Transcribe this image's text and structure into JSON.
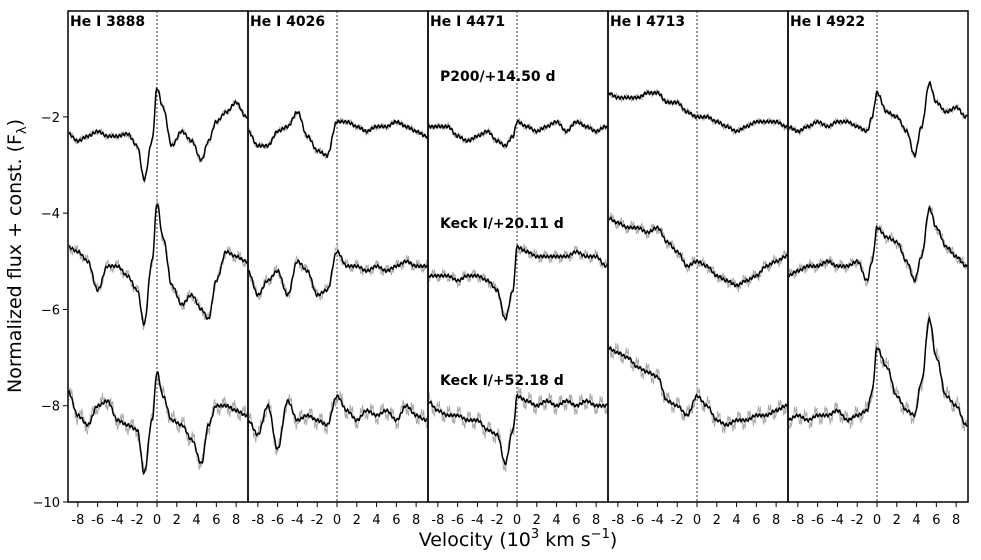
{
  "chart_data": {
    "type": "line",
    "ylabel": "Normalized flux + const. (F",
    "ylabel_sub": "λ",
    "ylabel_end": ")",
    "xlabel_main": "Velocity (10",
    "xlabel_sup1": "3",
    "xlabel_mid": " km s",
    "xlabel_sup2": "−1",
    "xlabel_end": ")",
    "xlim": [
      -9,
      9.2
    ],
    "ylim": [
      -10,
      0.2
    ],
    "xticks": [
      -8,
      -6,
      -4,
      -2,
      0,
      2,
      4,
      6,
      8
    ],
    "yticks": [
      -10,
      -8,
      -6,
      -4,
      -2
    ],
    "reference_line_x": 0,
    "colors": {
      "smoothed": "#000000",
      "raw": "#a8a8a8"
    },
    "epoch_labels": [
      "P200/+14.50 d",
      "Keck I/+20.11 d",
      "Keck I/+52.18 d"
    ],
    "panels": [
      {
        "title": "He I 3888",
        "series": [
          {
            "epoch": "P200/+14.50 d",
            "x": [
              -9,
              -8,
              -7,
              -6,
              -5,
              -4,
              -3,
              -2,
              -1.3,
              -0.5,
              0,
              0.6,
              1.5,
              2.5,
              3.5,
              4.5,
              5.2,
              6,
              7,
              8,
              9
            ],
            "y": [
              -2.35,
              -2.5,
              -2.4,
              -2.3,
              -2.4,
              -2.4,
              -2.35,
              -2.6,
              -3.3,
              -2.5,
              -1.4,
              -1.8,
              -2.6,
              -2.3,
              -2.5,
              -2.9,
              -2.5,
              -2.1,
              -1.9,
              -1.7,
              -2.0
            ]
          },
          {
            "epoch": "Keck I/+20.11 d",
            "x": [
              -9,
              -8,
              -7,
              -6,
              -5,
              -4,
              -3,
              -2,
              -1.3,
              -0.5,
              0,
              0.6,
              1.5,
              2.5,
              3.5,
              4.5,
              5.2,
              6,
              7,
              8,
              9
            ],
            "y": [
              -4.7,
              -4.8,
              -5.0,
              -5.6,
              -5.1,
              -5.1,
              -5.3,
              -5.6,
              -6.3,
              -5.0,
              -3.8,
              -4.5,
              -5.5,
              -5.9,
              -5.7,
              -6.0,
              -6.2,
              -5.4,
              -4.8,
              -4.9,
              -5.0
            ]
          },
          {
            "epoch": "Keck I/+52.18 d",
            "x": [
              -9,
              -8,
              -7,
              -6,
              -5,
              -4,
              -3,
              -2,
              -1.3,
              -0.5,
              0,
              0.6,
              1.5,
              2.5,
              3.5,
              4.5,
              5.2,
              6,
              7,
              8,
              9
            ],
            "y": [
              -7.7,
              -8.2,
              -8.4,
              -8.0,
              -7.9,
              -8.3,
              -8.4,
              -8.5,
              -9.4,
              -8.3,
              -7.3,
              -7.8,
              -8.3,
              -8.4,
              -8.7,
              -9.2,
              -8.4,
              -8.0,
              -8.0,
              -8.1,
              -8.2
            ]
          }
        ]
      },
      {
        "title": "He I 4026",
        "series": [
          {
            "epoch": "P200/+14.50 d",
            "x": [
              -9,
              -8,
              -7,
              -6,
              -5,
              -4,
              -3,
              -2,
              -1,
              0,
              1,
              2,
              3,
              4,
              5,
              6,
              7,
              8,
              9
            ],
            "y": [
              -2.3,
              -2.6,
              -2.6,
              -2.3,
              -2.2,
              -1.9,
              -2.4,
              -2.7,
              -2.8,
              -2.1,
              -2.1,
              -2.2,
              -2.3,
              -2.2,
              -2.2,
              -2.1,
              -2.2,
              -2.3,
              -2.4
            ]
          },
          {
            "epoch": "Keck I/+20.11 d",
            "x": [
              -9,
              -8,
              -7,
              -6,
              -5,
              -4,
              -3,
              -2,
              -1,
              0,
              1,
              2,
              3,
              4,
              5,
              6,
              7,
              8,
              9
            ],
            "y": [
              -5.2,
              -5.7,
              -5.4,
              -5.2,
              -5.7,
              -5.0,
              -5.2,
              -5.7,
              -5.6,
              -4.8,
              -5.1,
              -5.1,
              -5.2,
              -5.1,
              -5.2,
              -5.1,
              -5.0,
              -5.1,
              -5.1
            ]
          },
          {
            "epoch": "Keck I/+52.18 d",
            "x": [
              -9,
              -8,
              -7,
              -6,
              -5,
              -4,
              -3,
              -2,
              -1,
              0,
              1,
              2,
              3,
              4,
              5,
              6,
              7,
              8,
              9
            ],
            "y": [
              -8.3,
              -8.6,
              -8.0,
              -8.9,
              -7.9,
              -8.3,
              -8.2,
              -8.3,
              -8.4,
              -7.8,
              -8.1,
              -8.3,
              -8.1,
              -8.2,
              -8.1,
              -8.3,
              -8.0,
              -8.2,
              -8.3
            ]
          }
        ]
      },
      {
        "title": "He I 4471",
        "series": [
          {
            "epoch": "P200/+14.50 d",
            "x": [
              -9,
              -8,
              -7,
              -6,
              -5,
              -4,
              -3,
              -2,
              -1.2,
              -0.4,
              0,
              1,
              2,
              3,
              4,
              5,
              6,
              7,
              8,
              9
            ],
            "y": [
              -2.2,
              -2.2,
              -2.2,
              -2.4,
              -2.5,
              -2.4,
              -2.3,
              -2.5,
              -2.6,
              -2.4,
              -2.1,
              -2.2,
              -2.3,
              -2.2,
              -2.1,
              -2.3,
              -2.1,
              -2.2,
              -2.3,
              -2.2
            ]
          },
          {
            "epoch": "Keck I/+20.11 d",
            "x": [
              -9,
              -8,
              -7,
              -6,
              -5,
              -4,
              -3,
              -2,
              -1.2,
              -0.4,
              0,
              1,
              2,
              3,
              4,
              5,
              6,
              7,
              8,
              9
            ],
            "y": [
              -5.3,
              -5.3,
              -5.3,
              -5.4,
              -5.3,
              -5.3,
              -5.4,
              -5.6,
              -6.2,
              -5.6,
              -4.7,
              -4.8,
              -4.9,
              -4.9,
              -4.9,
              -4.9,
              -4.8,
              -4.9,
              -4.9,
              -5.1
            ]
          },
          {
            "epoch": "Keck I/+52.18 d",
            "x": [
              -9,
              -8,
              -7,
              -6,
              -5,
              -4,
              -3,
              -2,
              -1.2,
              -0.4,
              0,
              1,
              2,
              3,
              4,
              5,
              6,
              7,
              8,
              9
            ],
            "y": [
              -7.9,
              -8.1,
              -8.2,
              -8.2,
              -8.3,
              -8.3,
              -8.5,
              -8.6,
              -9.2,
              -8.5,
              -7.8,
              -7.9,
              -8.0,
              -7.9,
              -8.0,
              -7.9,
              -8.0,
              -7.9,
              -8.0,
              -8.0
            ]
          }
        ]
      },
      {
        "title": "He I 4713",
        "series": [
          {
            "epoch": "P200/+14.50 d",
            "x": [
              -9,
              -8,
              -7,
              -6,
              -5,
              -4,
              -3,
              -2,
              -1,
              0,
              1,
              2,
              3,
              4,
              5,
              6,
              7,
              8,
              9
            ],
            "y": [
              -1.5,
              -1.6,
              -1.6,
              -1.6,
              -1.5,
              -1.5,
              -1.7,
              -1.7,
              -1.9,
              -2.0,
              -2.0,
              -2.1,
              -2.2,
              -2.3,
              -2.2,
              -2.1,
              -2.1,
              -2.1,
              -2.2
            ]
          },
          {
            "epoch": "Keck I/+20.11 d",
            "x": [
              -9,
              -8,
              -7,
              -6,
              -5,
              -4,
              -3,
              -2,
              -1,
              0,
              1,
              2,
              3,
              4,
              5,
              6,
              7,
              8,
              9
            ],
            "y": [
              -4.1,
              -4.2,
              -4.3,
              -4.3,
              -4.4,
              -4.3,
              -4.6,
              -4.8,
              -5.1,
              -5.0,
              -5.1,
              -5.3,
              -5.4,
              -5.5,
              -5.4,
              -5.3,
              -5.1,
              -5.0,
              -4.9
            ]
          },
          {
            "epoch": "Keck I/+52.18 d",
            "x": [
              -9,
              -8,
              -7,
              -6,
              -5,
              -4,
              -3,
              -2,
              -1,
              0,
              1,
              2,
              3,
              4,
              5,
              6,
              7,
              8,
              9
            ],
            "y": [
              -6.8,
              -6.9,
              -7.0,
              -7.2,
              -7.3,
              -7.4,
              -7.9,
              -8.0,
              -8.2,
              -7.8,
              -8.0,
              -8.3,
              -8.4,
              -8.3,
              -8.3,
              -8.2,
              -8.2,
              -8.1,
              -8.0
            ]
          }
        ]
      },
      {
        "title": "He I 4922",
        "series": [
          {
            "epoch": "P200/+14.50 d",
            "x": [
              -9,
              -8,
              -7,
              -6,
              -5,
              -4,
              -3,
              -2,
              -1,
              -0.5,
              0,
              1,
              2,
              3,
              3.8,
              4.5,
              5.3,
              6,
              7,
              8,
              9
            ],
            "y": [
              -2.2,
              -2.3,
              -2.2,
              -2.1,
              -2.2,
              -2.1,
              -2.1,
              -2.2,
              -2.3,
              -2.0,
              -1.5,
              -1.9,
              -2.0,
              -2.3,
              -2.8,
              -2.2,
              -1.3,
              -1.7,
              -1.9,
              -1.8,
              -2.0
            ]
          },
          {
            "epoch": "Keck I/+20.11 d",
            "x": [
              -9,
              -8,
              -7,
              -6,
              -5,
              -4,
              -3,
              -2,
              -1,
              -0.5,
              0,
              1,
              2,
              3,
              3.8,
              4.5,
              5.3,
              6,
              7,
              8,
              9
            ],
            "y": [
              -5.3,
              -5.2,
              -5.1,
              -5.1,
              -5.0,
              -5.1,
              -5.1,
              -5.0,
              -5.4,
              -5.0,
              -4.3,
              -4.5,
              -4.6,
              -5.0,
              -5.4,
              -4.9,
              -3.9,
              -4.3,
              -4.7,
              -4.9,
              -5.1
            ]
          },
          {
            "epoch": "Keck I/+52.18 d",
            "x": [
              -9,
              -8,
              -7,
              -6,
              -5,
              -4,
              -3,
              -2,
              -1,
              -0.5,
              0,
              1,
              2,
              3,
              3.8,
              4.5,
              5.3,
              6,
              7,
              8,
              9
            ],
            "y": [
              -8.3,
              -8.2,
              -8.3,
              -8.2,
              -8.2,
              -8.1,
              -8.3,
              -8.2,
              -8.1,
              -7.7,
              -6.8,
              -7.2,
              -7.8,
              -8.1,
              -8.2,
              -7.5,
              -6.2,
              -7.0,
              -7.8,
              -8.0,
              -8.4
            ]
          }
        ]
      }
    ]
  }
}
